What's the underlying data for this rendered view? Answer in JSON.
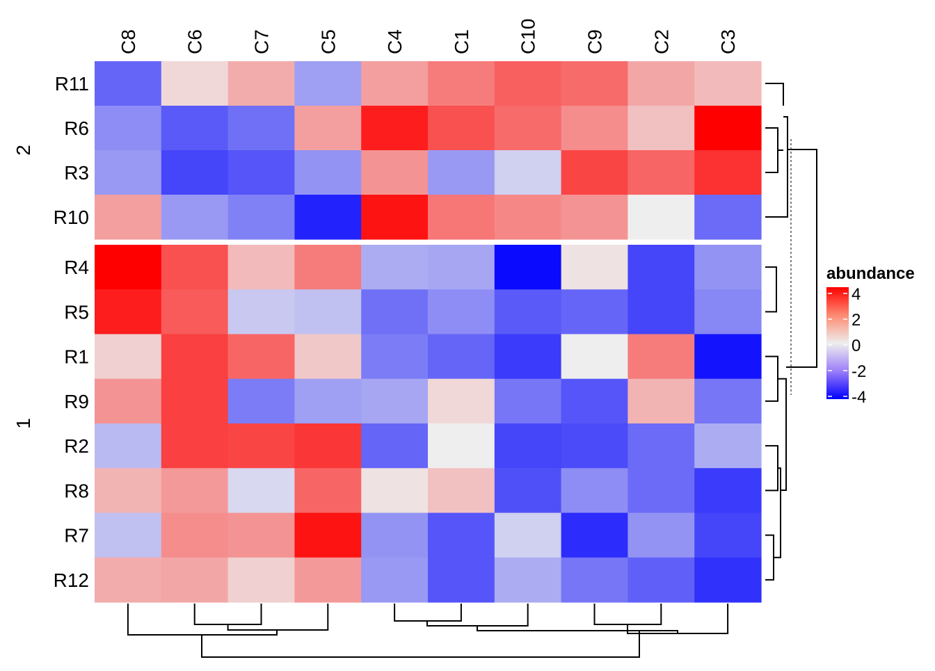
{
  "chart_data": {
    "type": "heatmap",
    "columns": [
      "C8",
      "C6",
      "C7",
      "C5",
      "C4",
      "C1",
      "C10",
      "C9",
      "C2",
      "C3"
    ],
    "row_groups": [
      {
        "label": "2",
        "rows": [
          "R11",
          "R6",
          "R3",
          "R10"
        ]
      },
      {
        "label": "1",
        "rows": [
          "R4",
          "R5",
          "R1",
          "R9",
          "R2",
          "R8",
          "R7",
          "R12"
        ]
      }
    ],
    "values": {
      "R11": [
        -2.0,
        0.2,
        0.8,
        -1.0,
        1.0,
        1.6,
        2.1,
        1.9,
        0.9,
        0.6
      ],
      "R6": [
        -1.3,
        -2.2,
        -1.8,
        1.0,
        3.4,
        2.4,
        1.9,
        1.3,
        0.5,
        4.4
      ],
      "R3": [
        -1.1,
        -2.6,
        -2.3,
        -1.2,
        1.2,
        -1.1,
        -0.3,
        2.6,
        2.0,
        3.0
      ],
      "R10": [
        1.0,
        -1.1,
        -1.5,
        -3.3,
        3.6,
        1.7,
        1.4,
        1.2,
        0.0,
        -1.9
      ],
      "R4": [
        4.4,
        2.4,
        0.6,
        1.6,
        -0.8,
        -0.9,
        -3.8,
        0.1,
        -2.6,
        -1.2
      ],
      "R5": [
        3.4,
        2.2,
        -0.4,
        -0.5,
        -1.8,
        -1.3,
        -2.2,
        -2.0,
        -2.6,
        -1.4
      ],
      "R1": [
        0.3,
        2.7,
        2.0,
        0.4,
        -1.6,
        -2.0,
        -2.8,
        0.0,
        1.6,
        -3.6
      ],
      "R9": [
        1.2,
        2.7,
        -1.6,
        -1.0,
        -0.9,
        0.2,
        -1.7,
        -2.3,
        0.7,
        -1.7
      ],
      "R2": [
        -0.6,
        2.7,
        2.6,
        2.9,
        -2.0,
        0.0,
        -2.6,
        -2.5,
        -1.9,
        -0.8
      ],
      "R8": [
        0.7,
        1.1,
        -0.2,
        2.0,
        0.1,
        0.5,
        -2.4,
        -1.3,
        -1.9,
        -2.8
      ],
      "R7": [
        -0.5,
        1.3,
        1.2,
        3.6,
        -1.2,
        -2.3,
        -0.3,
        -3.1,
        -1.2,
        -2.6
      ],
      "R12": [
        0.8,
        0.9,
        0.3,
        1.1,
        -1.1,
        -2.3,
        -0.8,
        -1.7,
        -2.1,
        -3.0
      ]
    },
    "legend": {
      "title": "abundance",
      "ticks": [
        "4",
        "2",
        "0",
        "-2",
        "-4"
      ],
      "range": [
        -4,
        4
      ],
      "colors": {
        "low": "#0000ff",
        "mid": "#eeeeee",
        "high": "#ff0000"
      }
    }
  }
}
